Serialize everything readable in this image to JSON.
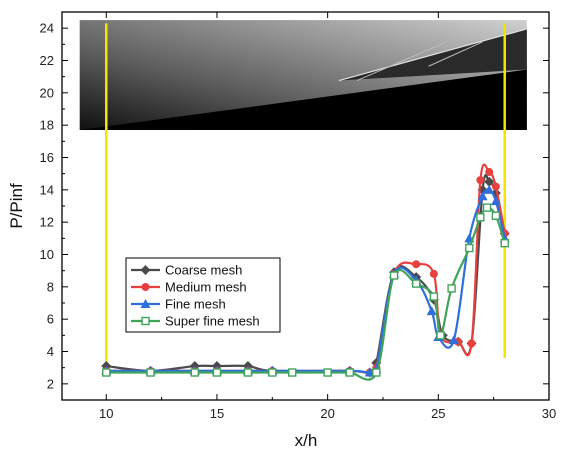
{
  "chart_data": {
    "type": "line",
    "title": "",
    "xlabel": "x/h",
    "ylabel": "P/Pinf",
    "xlim": [
      8,
      30
    ],
    "ylim": [
      1,
      25
    ],
    "x_ticks": [
      10,
      15,
      20,
      25,
      30
    ],
    "y_ticks": [
      2,
      4,
      6,
      8,
      10,
      12,
      14,
      16,
      18,
      20,
      22,
      24
    ],
    "grid": false,
    "legend_position": "lower-left",
    "inset_image": {
      "description": "schlieren-style grayscale flow field",
      "x_range": [
        8.8,
        29
      ],
      "y_range": [
        17.7,
        24.5
      ]
    },
    "reference_lines": [
      {
        "x": 10,
        "y_range": [
          3.2,
          24.3
        ],
        "color": "#f2e600"
      },
      {
        "x": 28,
        "y_range": [
          3.6,
          24.3
        ],
        "color": "#f2e600"
      }
    ],
    "series": [
      {
        "name": "Coarse mesh",
        "color": "#4a4a4a",
        "marker": "diamond",
        "x": [
          10,
          12,
          14,
          15,
          16.4,
          17.5,
          21,
          21.9,
          22.2,
          23,
          24,
          24.8,
          25.2,
          25.9,
          26.5,
          27,
          27.3,
          27.6,
          28
        ],
        "y": [
          3.1,
          2.8,
          3.1,
          3.1,
          3.1,
          2.8,
          2.8,
          2.7,
          3.3,
          8.9,
          8.6,
          7.2,
          5.0,
          4.6,
          4.5,
          14.0,
          14.5,
          13.8,
          11.3
        ]
      },
      {
        "name": "Medium mesh",
        "color": "#e8403e",
        "marker": "circle",
        "x": [
          10,
          12,
          14,
          15,
          16.4,
          17.5,
          21,
          21.9,
          22.2,
          23,
          24,
          24.8,
          25.1,
          25.9,
          26.5,
          26.9,
          27.3,
          27.6,
          28
        ],
        "y": [
          2.8,
          2.8,
          2.8,
          2.8,
          2.8,
          2.8,
          2.8,
          2.7,
          3.0,
          8.8,
          9.4,
          8.8,
          5.0,
          4.6,
          4.5,
          14.6,
          15.1,
          14.2,
          11.3
        ]
      },
      {
        "name": "Fine mesh",
        "color": "#2f6fdc",
        "marker": "triangle",
        "x": [
          10,
          12,
          14,
          15,
          16.4,
          17.5,
          21,
          21.9,
          22.2,
          23,
          24,
          24.7,
          25,
          25.7,
          26.4,
          27,
          27.3,
          27.6,
          28
        ],
        "y": [
          2.8,
          2.8,
          2.8,
          2.8,
          2.8,
          2.8,
          2.8,
          2.7,
          2.9,
          8.8,
          8.4,
          6.5,
          4.9,
          4.7,
          11.0,
          13.6,
          14.0,
          13.3,
          11.0
        ]
      },
      {
        "name": "Super fine mesh",
        "color": "#3fa35a",
        "marker": "square-open",
        "x": [
          10,
          12,
          14,
          15,
          16.4,
          17.5,
          18.4,
          20,
          21,
          22.2,
          23,
          24,
          24.8,
          25.1,
          25.6,
          26.4,
          26.9,
          27.2,
          27.6,
          28
        ],
        "y": [
          2.7,
          2.7,
          2.7,
          2.7,
          2.7,
          2.7,
          2.7,
          2.7,
          2.7,
          2.7,
          8.7,
          8.2,
          7.4,
          5.0,
          7.9,
          10.4,
          12.3,
          12.9,
          12.4,
          10.7
        ]
      }
    ]
  }
}
